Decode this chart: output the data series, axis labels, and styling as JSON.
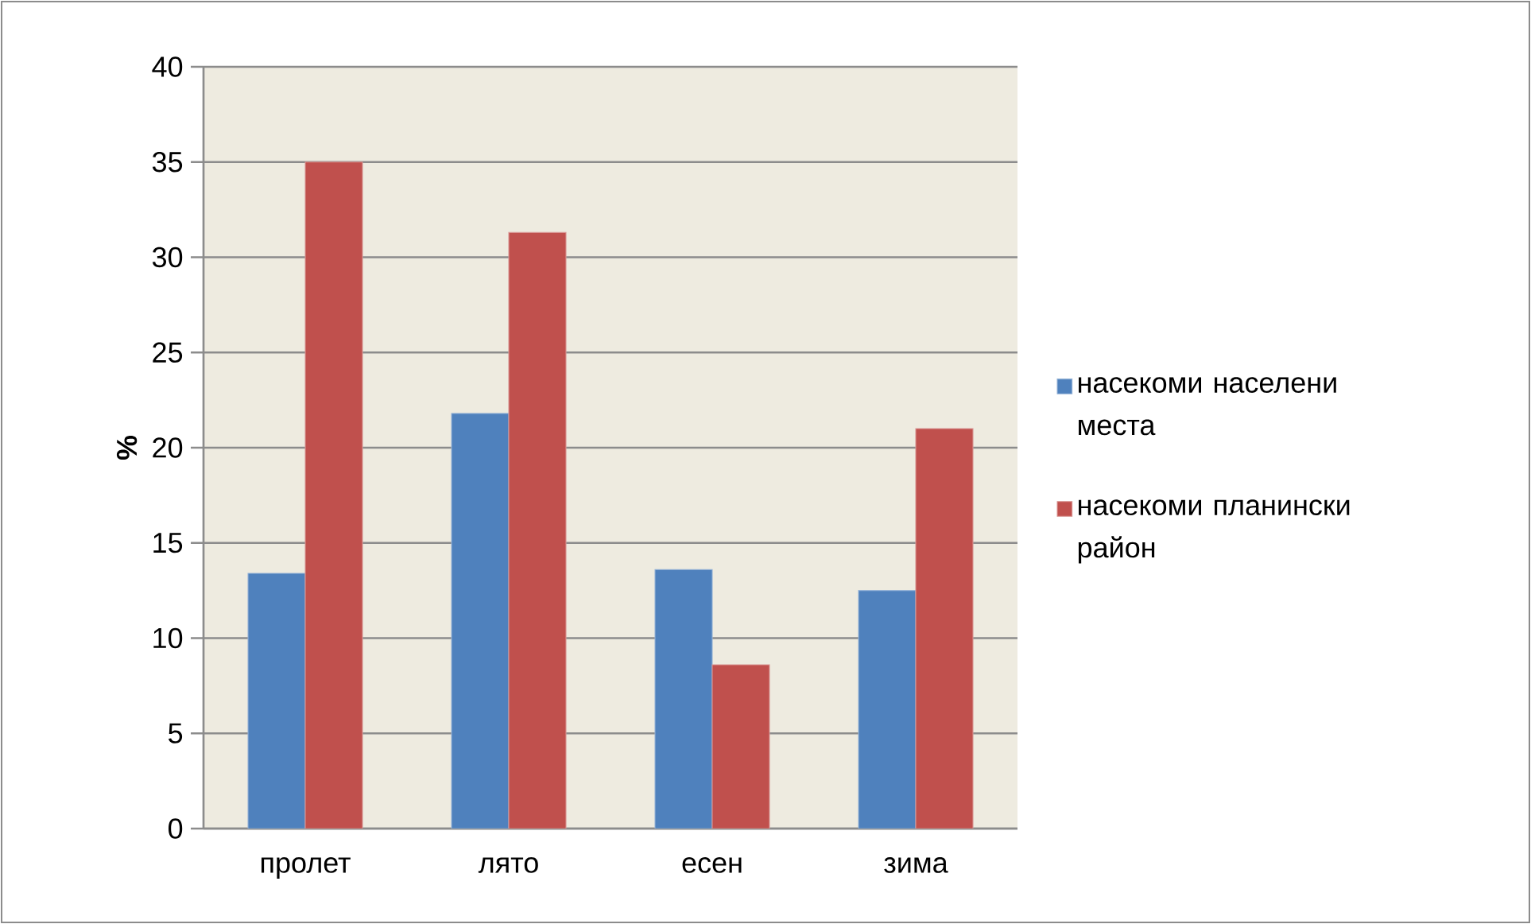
{
  "chart_data": {
    "type": "bar",
    "ylabel": "%",
    "categories": [
      "пролет",
      "лято",
      "есен",
      "зима"
    ],
    "series": [
      {
        "name": "насекоми населени места",
        "color": "#4f81bd",
        "values": [
          13.4,
          21.8,
          13.6,
          12.5
        ]
      },
      {
        "name": "насекоми планински район",
        "color": "#c0504d",
        "values": [
          35,
          31.3,
          8.6,
          21.0
        ]
      }
    ],
    "ylim": [
      0,
      40
    ],
    "yticks": [
      0,
      5,
      10,
      15,
      20,
      25,
      30,
      35,
      40
    ],
    "grid": "y",
    "legend": "right"
  }
}
